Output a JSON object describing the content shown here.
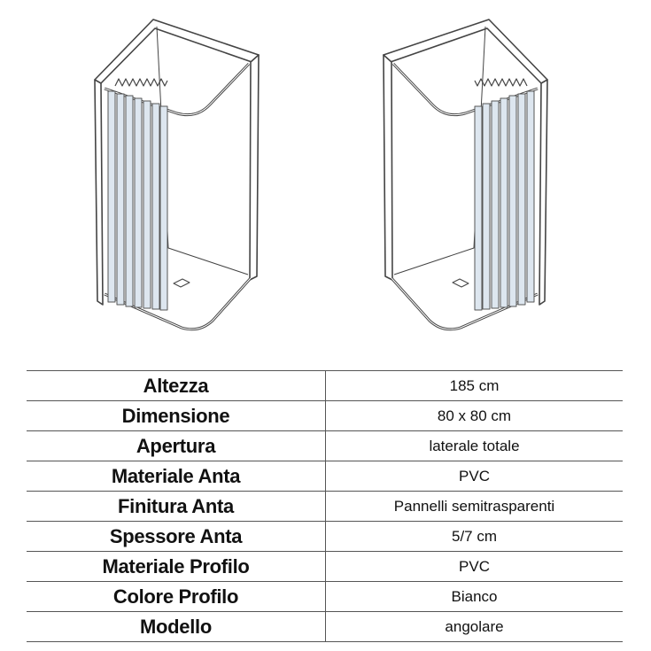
{
  "illustrations": [
    {
      "name": "shower-enclosure-left-opening",
      "panel_color": "#dde6ef"
    },
    {
      "name": "shower-enclosure-right-opening",
      "panel_color": "#dde6ef"
    }
  ],
  "specs": [
    {
      "label": "Altezza",
      "value": "185 cm"
    },
    {
      "label": "Dimensione",
      "value": "80 x 80 cm"
    },
    {
      "label": "Apertura",
      "value": "laterale totale"
    },
    {
      "label": "Materiale Anta",
      "value": "PVC"
    },
    {
      "label": "Finitura Anta",
      "value": "Pannelli semitrasparenti"
    },
    {
      "label": "Spessore Anta",
      "value": "5/7 cm"
    },
    {
      "label": "Materiale Profilo",
      "value": "PVC"
    },
    {
      "label": "Colore Profilo",
      "value": "Bianco"
    },
    {
      "label": "Modello",
      "value": "angolare"
    }
  ]
}
